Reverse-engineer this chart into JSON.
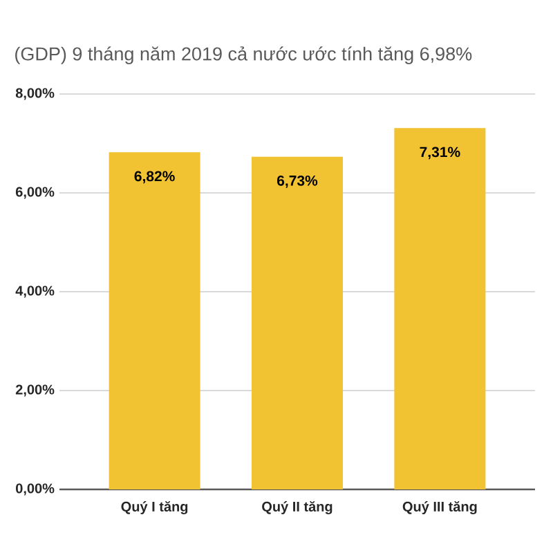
{
  "chart_data": {
    "type": "bar",
    "title": "(GDP) 9 tháng năm 2019 cả nước ước tính tăng 6,98%",
    "categories": [
      "Quý I tăng",
      "Quý II tăng",
      "Quý III tăng"
    ],
    "values": [
      6.82,
      6.73,
      7.31
    ],
    "value_labels": [
      "6,82%",
      "6,73%",
      "7,31%"
    ],
    "color": "#f1c232",
    "ylim": [
      0,
      8
    ],
    "yticks": [
      {
        "value": 0,
        "label": "0,00%"
      },
      {
        "value": 2,
        "label": "2,00%"
      },
      {
        "value": 4,
        "label": "4,00%"
      },
      {
        "value": 6,
        "label": "6,00%"
      },
      {
        "value": 8,
        "label": "8,00%"
      }
    ],
    "grid": "y"
  }
}
